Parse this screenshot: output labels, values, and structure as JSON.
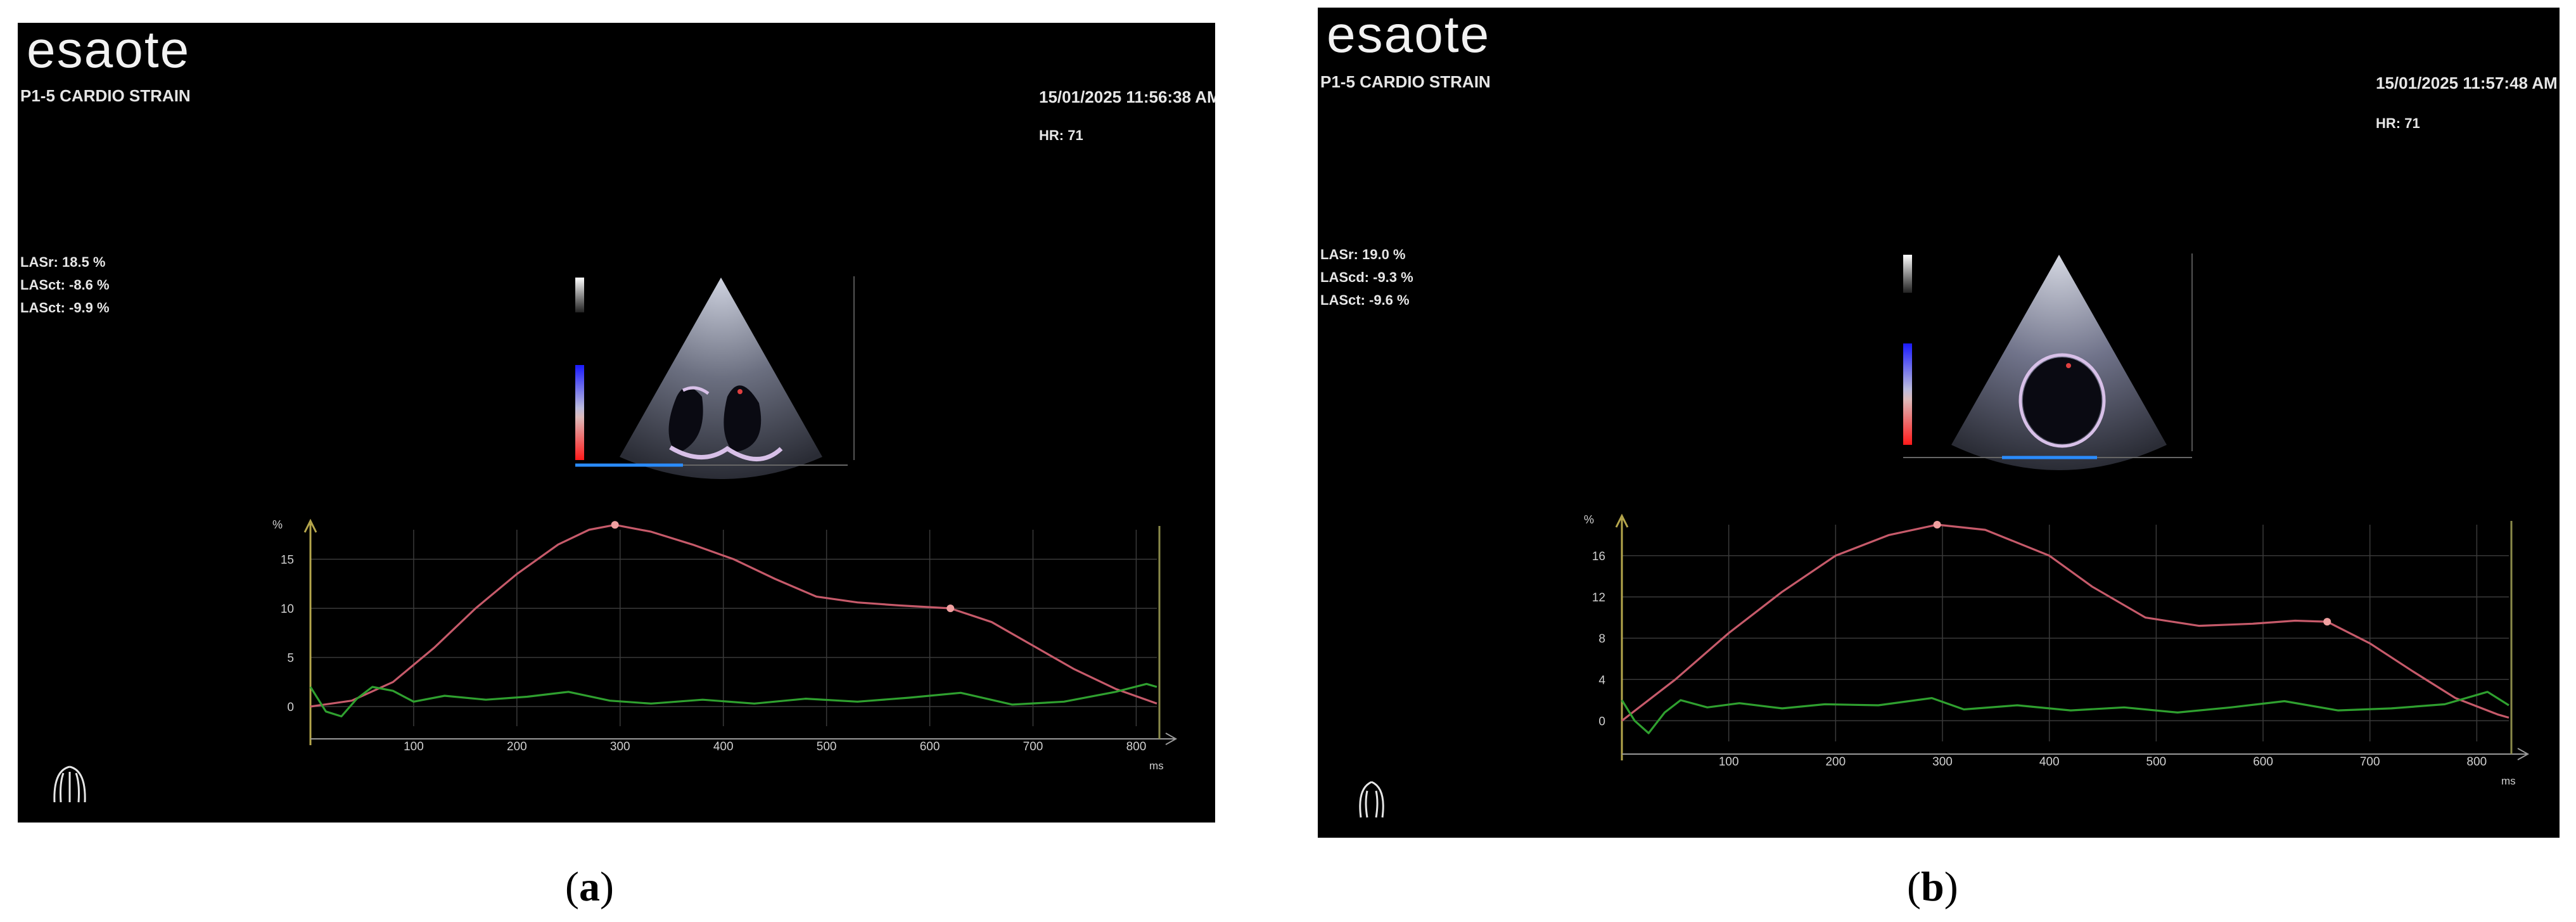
{
  "panels": [
    {
      "logo": "esaote",
      "mode": "P1-5 CARDIO STRAIN",
      "datetime": "15/01/2025 11:56:38 AM",
      "hr": "HR: 71",
      "measurements": [
        "LASr: 18.5 %",
        "LASct: -8.6 %",
        "LASct: -9.9 %"
      ],
      "caption_letter": "a",
      "chart_data": {
        "type": "line",
        "ylabel": "%",
        "xlabel": "ms",
        "xlim": [
          0,
          820
        ],
        "ylim": [
          -2,
          18
        ],
        "xticks": [
          100,
          200,
          300,
          400,
          500,
          600,
          700,
          800
        ],
        "yticks": [
          0,
          5,
          10,
          15
        ],
        "grid": true,
        "series": [
          {
            "color": "#c65a6a",
            "points": [
              [
                0,
                0
              ],
              [
                40,
                0.6
              ],
              [
                80,
                2.5
              ],
              [
                120,
                6
              ],
              [
                160,
                10
              ],
              [
                200,
                13.5
              ],
              [
                240,
                16.5
              ],
              [
                270,
                18
              ],
              [
                295,
                18.5
              ],
              [
                330,
                17.8
              ],
              [
                370,
                16.5
              ],
              [
                410,
                15
              ],
              [
                450,
                13
              ],
              [
                490,
                11.2
              ],
              [
                530,
                10.6
              ],
              [
                570,
                10.3
              ],
              [
                620,
                10
              ],
              [
                660,
                8.6
              ],
              [
                700,
                6.2
              ],
              [
                740,
                3.8
              ],
              [
                780,
                1.8
              ],
              [
                820,
                0.3
              ]
            ],
            "markers": [
              [
                295,
                18.5
              ],
              [
                620,
                10
              ]
            ]
          },
          {
            "color": "#2fa02f",
            "points": [
              [
                0,
                2
              ],
              [
                15,
                -0.5
              ],
              [
                30,
                -1
              ],
              [
                45,
                0.8
              ],
              [
                60,
                2
              ],
              [
                80,
                1.6
              ],
              [
                100,
                0.5
              ],
              [
                130,
                1.1
              ],
              [
                170,
                0.7
              ],
              [
                210,
                1
              ],
              [
                250,
                1.5
              ],
              [
                290,
                0.6
              ],
              [
                330,
                0.3
              ],
              [
                380,
                0.7
              ],
              [
                430,
                0.3
              ],
              [
                480,
                0.8
              ],
              [
                530,
                0.5
              ],
              [
                580,
                0.9
              ],
              [
                630,
                1.4
              ],
              [
                680,
                0.2
              ],
              [
                730,
                0.5
              ],
              [
                780,
                1.5
              ],
              [
                810,
                2.3
              ],
              [
                820,
                2
              ]
            ]
          }
        ]
      }
    },
    {
      "logo": "esaote",
      "mode": "P1-5 CARDIO STRAIN",
      "datetime": "15/01/2025 11:57:48 AM",
      "hr": "HR: 71",
      "measurements": [
        "LASr: 19.0 %",
        "LAScd: -9.3 %",
        "LASct: -9.6 %"
      ],
      "caption_letter": "b",
      "chart_data": {
        "type": "line",
        "ylabel": "%",
        "xlabel": "ms",
        "xlim": [
          0,
          830
        ],
        "ylim": [
          -2,
          19
        ],
        "xticks": [
          100,
          200,
          300,
          400,
          500,
          600,
          700,
          800
        ],
        "yticks": [
          0,
          4,
          8,
          12,
          16
        ],
        "grid": true,
        "series": [
          {
            "color": "#c65a6a",
            "points": [
              [
                0,
                0
              ],
              [
                50,
                4
              ],
              [
                100,
                8.5
              ],
              [
                150,
                12.5
              ],
              [
                200,
                16
              ],
              [
                250,
                18
              ],
              [
                295,
                19
              ],
              [
                340,
                18.5
              ],
              [
                400,
                16
              ],
              [
                440,
                13
              ],
              [
                490,
                10
              ],
              [
                540,
                9.2
              ],
              [
                590,
                9.4
              ],
              [
                630,
                9.7
              ],
              [
                660,
                9.6
              ],
              [
                700,
                7.5
              ],
              [
                740,
                4.8
              ],
              [
                780,
                2.2
              ],
              [
                820,
                0.6
              ],
              [
                830,
                0.3
              ]
            ],
            "markers": [
              [
                295,
                19
              ],
              [
                660,
                9.6
              ]
            ]
          },
          {
            "color": "#2fa02f",
            "points": [
              [
                0,
                2
              ],
              [
                12,
                0
              ],
              [
                25,
                -1.2
              ],
              [
                40,
                0.8
              ],
              [
                55,
                2
              ],
              [
                80,
                1.3
              ],
              [
                110,
                1.7
              ],
              [
                150,
                1.2
              ],
              [
                190,
                1.6
              ],
              [
                240,
                1.5
              ],
              [
                290,
                2.2
              ],
              [
                320,
                1.1
              ],
              [
                370,
                1.5
              ],
              [
                420,
                1
              ],
              [
                470,
                1.3
              ],
              [
                520,
                0.8
              ],
              [
                570,
                1.3
              ],
              [
                620,
                1.9
              ],
              [
                670,
                1
              ],
              [
                720,
                1.2
              ],
              [
                770,
                1.6
              ],
              [
                810,
                2.8
              ],
              [
                830,
                1.5
              ]
            ]
          }
        ]
      }
    }
  ]
}
